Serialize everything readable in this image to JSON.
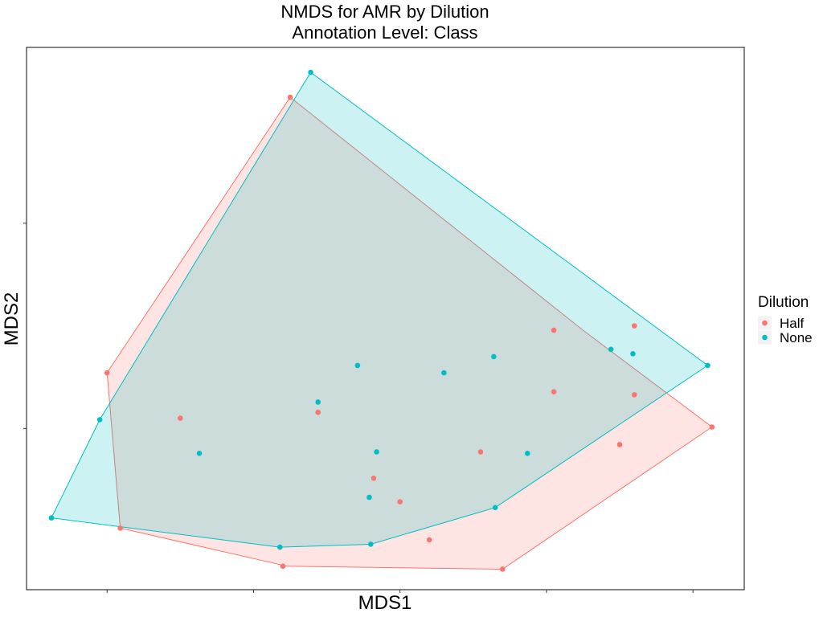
{
  "chart_data": {
    "type": "scatter",
    "title": "NMDS for AMR by Dilution",
    "subtitle": "Annotation Level: Class",
    "xlabel": "MDS1",
    "ylabel": "MDS2",
    "xlim": [
      -0.255,
      0.235
    ],
    "ylim": [
      -0.11,
      0.26
    ],
    "x_ticks": [
      -0.2,
      -0.1,
      0.0,
      0.1,
      0.2
    ],
    "y_ticks": [
      0.0,
      0.14
    ],
    "grid": false,
    "legend": {
      "title": "Dilution",
      "position": "right"
    },
    "series": [
      {
        "name": "Half",
        "color": "#F8766D",
        "points": [
          [
            -0.075,
            0.226
          ],
          [
            -0.2,
            0.038
          ],
          [
            -0.15,
            0.007
          ],
          [
            -0.056,
            0.011
          ],
          [
            -0.191,
            -0.068
          ],
          [
            -0.08,
            -0.094
          ],
          [
            0.0,
            -0.05
          ],
          [
            -0.018,
            -0.034
          ],
          [
            0.055,
            -0.016
          ],
          [
            0.02,
            -0.076
          ],
          [
            0.105,
            0.067
          ],
          [
            0.105,
            0.025
          ],
          [
            0.16,
            0.07
          ],
          [
            0.16,
            0.023
          ],
          [
            0.15,
            -0.011
          ],
          [
            0.213,
            0.001
          ],
          [
            0.07,
            -0.096
          ]
        ],
        "hull": [
          [
            -0.075,
            0.226
          ],
          [
            0.125,
            0.067
          ],
          [
            0.213,
            0.001
          ],
          [
            0.07,
            -0.096
          ],
          [
            -0.077,
            -0.094
          ],
          [
            -0.191,
            -0.068
          ],
          [
            -0.2,
            0.038
          ]
        ]
      },
      {
        "name": "None",
        "color": "#00BFC4",
        "points": [
          [
            -0.061,
            0.243
          ],
          [
            -0.029,
            0.043
          ],
          [
            -0.056,
            0.018
          ],
          [
            -0.137,
            -0.017
          ],
          [
            -0.238,
            -0.061
          ],
          [
            -0.205,
            0.006
          ],
          [
            -0.082,
            -0.081
          ],
          [
            -0.021,
            -0.047
          ],
          [
            -0.016,
            -0.016
          ],
          [
            0.087,
            -0.017
          ],
          [
            0.064,
            0.049
          ],
          [
            0.144,
            0.054
          ],
          [
            0.159,
            0.051
          ],
          [
            0.21,
            0.043
          ],
          [
            0.03,
            0.038
          ],
          [
            -0.02,
            -0.079
          ],
          [
            0.065,
            -0.054
          ]
        ],
        "hull": [
          [
            -0.061,
            0.243
          ],
          [
            0.21,
            0.043
          ],
          [
            0.065,
            -0.054
          ],
          [
            -0.02,
            -0.079
          ],
          [
            -0.082,
            -0.081
          ],
          [
            -0.238,
            -0.061
          ],
          [
            -0.205,
            0.006
          ]
        ]
      }
    ]
  }
}
